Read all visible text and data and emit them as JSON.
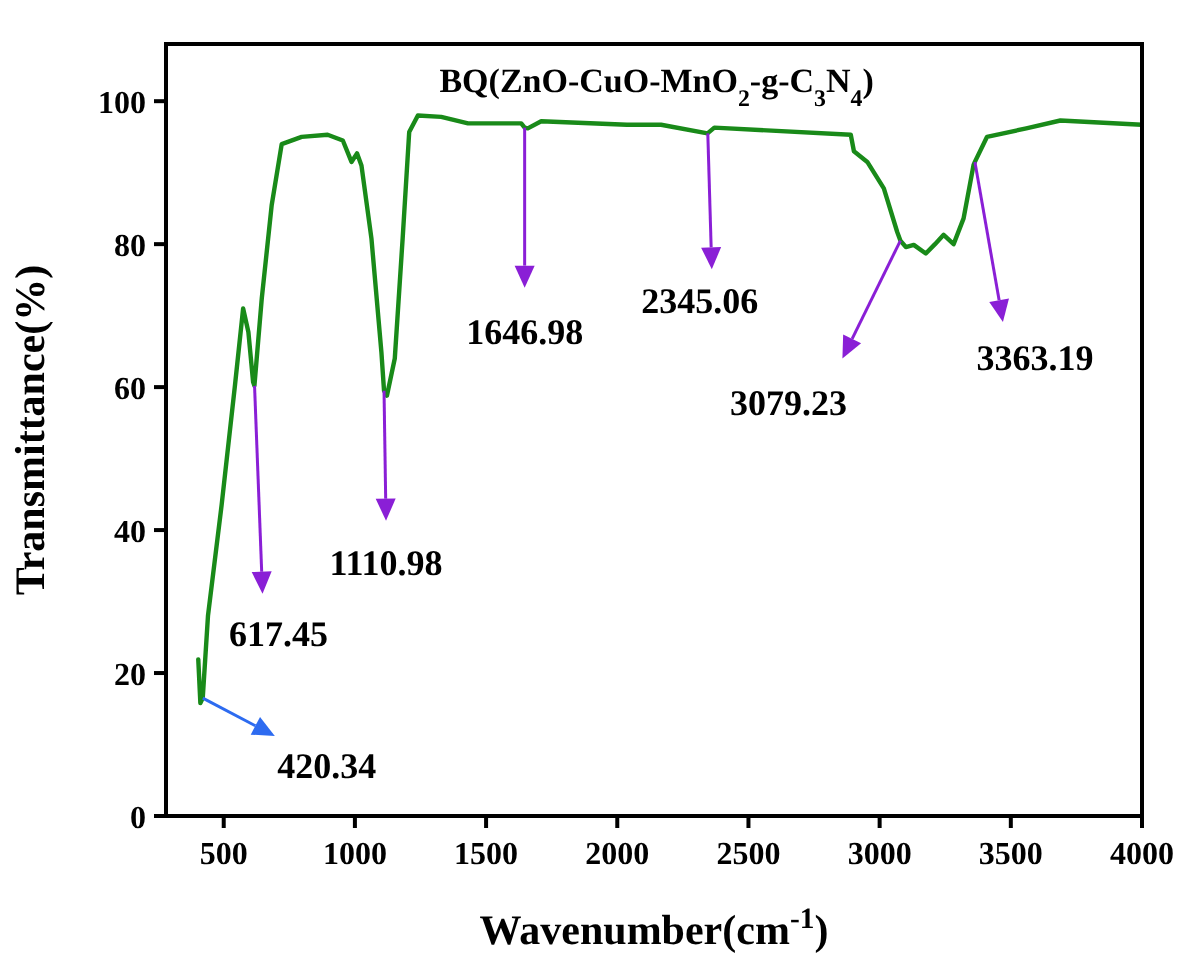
{
  "chart_data": {
    "type": "line",
    "title": "BQ(ZnO-CuO-MnO$_{2}$-g-C$_{3}$N$_{4}$)",
    "xlabel": "Wavenumber(cm$^{-1}$)",
    "ylabel": "Transmittance(%)",
    "xlim": [
      280,
      4000
    ],
    "ylim": [
      0,
      108
    ],
    "xticks": [
      500,
      1000,
      1500,
      2000,
      2500,
      3000,
      3500,
      4000
    ],
    "yticks": [
      0,
      20,
      40,
      60,
      80,
      100
    ],
    "grid": false,
    "marker": "none",
    "line_style": "solid",
    "series": [
      {
        "color": "#198a19",
        "x": [
          403,
          411,
          420,
          440,
          492,
          543,
          574,
          594,
          612,
          617,
          645,
          683,
          721,
          797,
          896,
          954,
          987,
          1008,
          1025,
          1063,
          1101,
          1111,
          1122,
          1152,
          1182,
          1207,
          1240,
          1329,
          1431,
          1634,
          1647,
          1659,
          1710,
          2037,
          2167,
          2344,
          2370,
          2890,
          2902,
          2953,
          3016,
          3067,
          3079,
          3100,
          3130,
          3176,
          3211,
          3244,
          3282,
          3320,
          3358,
          3363,
          3409,
          3559,
          3689,
          3999
        ],
        "values": [
          21.9,
          15.8,
          16.5,
          28,
          43.5,
          60.3,
          71,
          67.7,
          60.7,
          60.2,
          72.4,
          85.5,
          94,
          95,
          95.3,
          94.5,
          91.5,
          92.7,
          91,
          80.8,
          64.9,
          59.5,
          58.8,
          64,
          80.8,
          95.7,
          98,
          97.8,
          96.9,
          96.9,
          96.3,
          96.2,
          97.2,
          96.7,
          96.7,
          95.5,
          96.3,
          95.3,
          93,
          91.5,
          87.8,
          81.7,
          80.5,
          79.6,
          79.9,
          78.7,
          80,
          81.3,
          80,
          83.6,
          91.1,
          91.5,
          95,
          96.2,
          97.3,
          96.7
        ]
      }
    ],
    "annotations": [
      {
        "text": "420.34",
        "x": 420.34,
        "y": 16.5
      },
      {
        "text": "617.45",
        "x": 617.45,
        "y": 60.2
      },
      {
        "text": "1110.98",
        "x": 1110.98,
        "y": 59.5
      },
      {
        "text": "1646.98",
        "x": 1646.98,
        "y": 96.3
      },
      {
        "text": "2345.06",
        "x": 2345.06,
        "y": 95.5
      },
      {
        "text": "3079.23",
        "x": 3079.23,
        "y": 80.5
      },
      {
        "text": "3363.19",
        "x": 3363.19,
        "y": 91.5
      }
    ]
  }
}
